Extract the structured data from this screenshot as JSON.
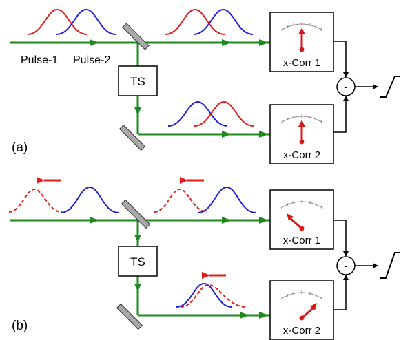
{
  "panels": {
    "a": {
      "label": "(a)",
      "pulse1_label": "Pulse-1",
      "pulse2_label": "Pulse-2",
      "ts_label": "TS",
      "xcorr1_label": "x-Corr 1",
      "xcorr2_label": "x-Corr 2",
      "diff_symbol": "-"
    },
    "b": {
      "label": "(b)",
      "ts_label": "TS",
      "xcorr1_label": "x-Corr 1",
      "xcorr2_label": "x-Corr 2",
      "diff_symbol": "-"
    }
  },
  "colors": {
    "beam": "#1e8a1e",
    "pulse_1": "#e31c1c",
    "pulse_2": "#1f1fd6",
    "needle": "#d41a1a",
    "mirror": "#a9a9a9",
    "outline": "#000000"
  }
}
